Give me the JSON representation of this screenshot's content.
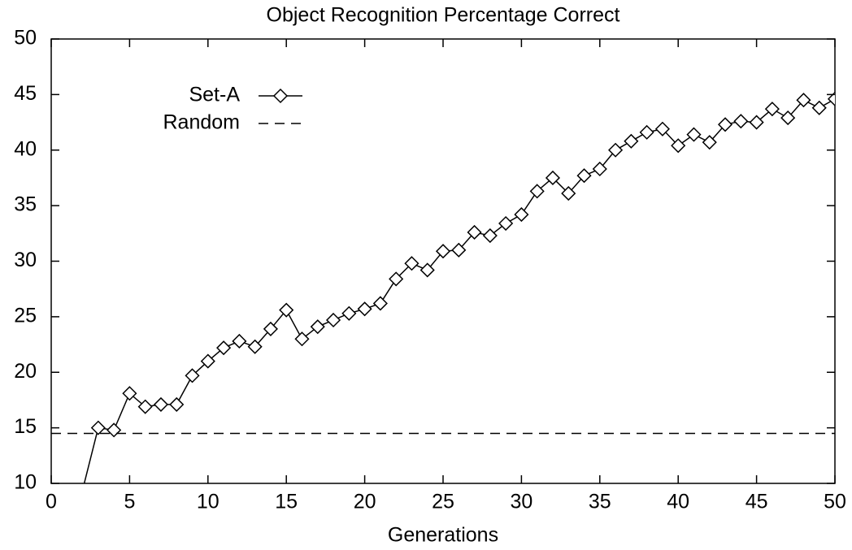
{
  "chart_data": {
    "type": "line",
    "title": "Object Recognition Percentage Correct",
    "x_label": "Generations",
    "xlim": [
      0,
      50
    ],
    "xticks": [
      0,
      5,
      10,
      15,
      20,
      25,
      30,
      35,
      40,
      45,
      50
    ],
    "ylim": [
      10,
      50
    ],
    "yticks": [
      10,
      15,
      20,
      25,
      30,
      35,
      40,
      45,
      50
    ],
    "legend": "upper left",
    "series": [
      {
        "name": "Set-A",
        "color": "#000000",
        "style": "solid",
        "marker": "diamond",
        "x": [
          2,
          3,
          4,
          5,
          6,
          7,
          8,
          9,
          10,
          11,
          12,
          13,
          14,
          15,
          16,
          17,
          18,
          19,
          20,
          21,
          22,
          23,
          24,
          25,
          26,
          27,
          28,
          29,
          30,
          31,
          32,
          33,
          34,
          35,
          36,
          37,
          38,
          39,
          40,
          41,
          42,
          43,
          44,
          45,
          46,
          47,
          48,
          49,
          50
        ],
        "values": [
          9.4,
          15.0,
          14.8,
          18.1,
          16.9,
          17.1,
          17.1,
          19.7,
          21.0,
          22.2,
          22.8,
          22.3,
          23.9,
          25.6,
          23.0,
          24.1,
          24.7,
          25.3,
          25.7,
          26.2,
          28.4,
          29.8,
          29.2,
          30.9,
          31.0,
          32.6,
          32.3,
          33.4,
          34.2,
          36.3,
          37.5,
          36.1,
          37.7,
          38.3,
          40.0,
          40.8,
          41.6,
          41.9,
          40.4,
          41.4,
          40.7,
          42.3,
          42.6,
          42.5,
          43.7,
          42.9,
          44.5,
          43.8,
          44.6
        ]
      },
      {
        "name": "Random",
        "color": "#000000",
        "style": "dashed",
        "x": [
          0,
          50
        ],
        "values": [
          14.5,
          14.5
        ]
      }
    ]
  }
}
